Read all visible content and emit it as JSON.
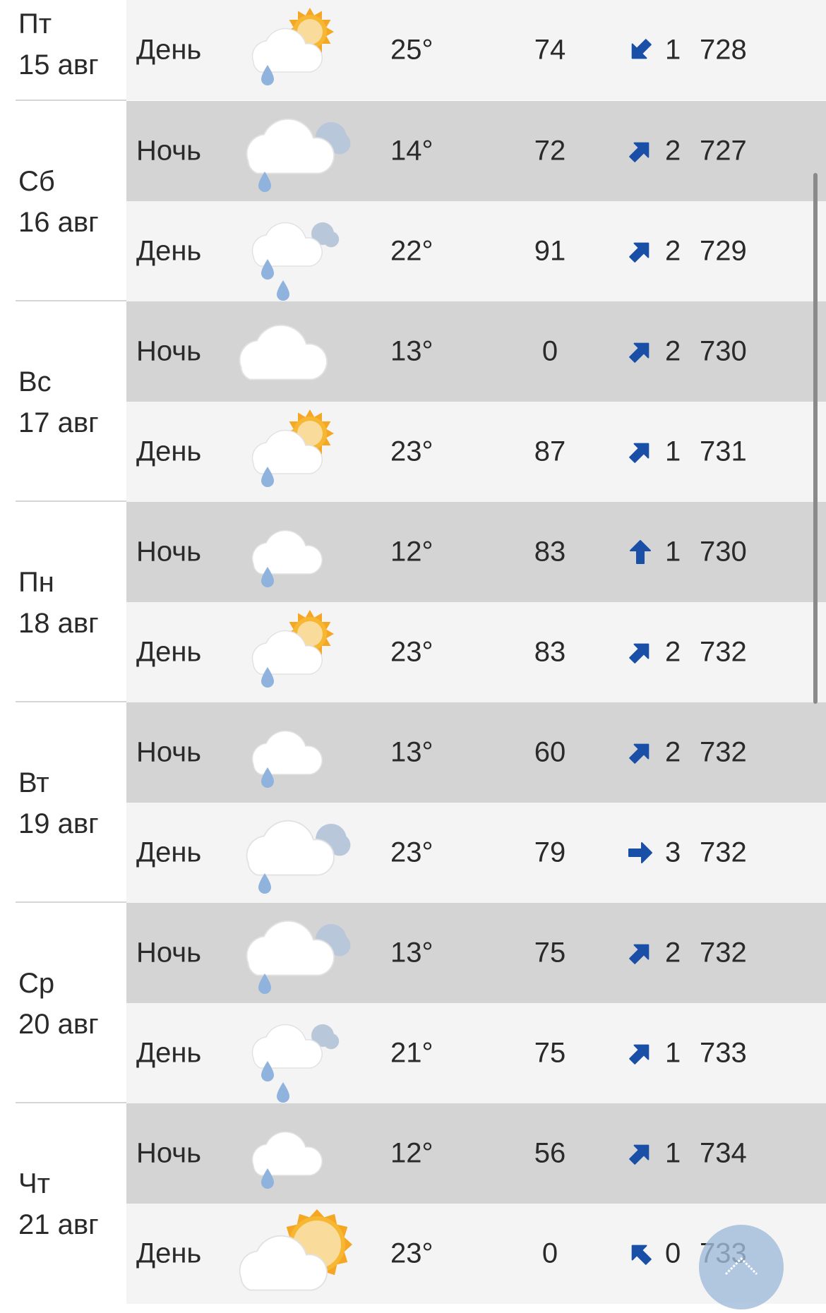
{
  "colors": {
    "wind_arrow": "#1a4fa8",
    "night_row": "#d4d4d4",
    "day_row": "#f4f4f4",
    "scroll_top_button": "#a9bfdc"
  },
  "days": [
    {
      "weekday": "Пт",
      "date": "15 авг",
      "rows": [
        {
          "period": "День",
          "icon": "cloud-sun-rain",
          "temp": "25°",
          "humidity": "74",
          "wind_dir": "down-left",
          "wind_speed": "1",
          "pressure": "728"
        }
      ]
    },
    {
      "weekday": "Сб",
      "date": "16 авг",
      "rows": [
        {
          "period": "Ночь",
          "icon": "overcast-rain",
          "temp": "14°",
          "humidity": "72",
          "wind_dir": "up-right",
          "wind_speed": "2",
          "pressure": "727"
        },
        {
          "period": "День",
          "icon": "overcast-heavy-rain",
          "temp": "22°",
          "humidity": "91",
          "wind_dir": "up-right",
          "wind_speed": "2",
          "pressure": "729"
        }
      ]
    },
    {
      "weekday": "Вс",
      "date": "17 авг",
      "rows": [
        {
          "period": "Ночь",
          "icon": "cloud-moon",
          "temp": "13°",
          "humidity": "0",
          "wind_dir": "up-right",
          "wind_speed": "2",
          "pressure": "730"
        },
        {
          "period": "День",
          "icon": "cloud-sun-rain",
          "temp": "23°",
          "humidity": "87",
          "wind_dir": "up-right",
          "wind_speed": "1",
          "pressure": "731"
        }
      ]
    },
    {
      "weekday": "Пн",
      "date": "18 авг",
      "rows": [
        {
          "period": "Ночь",
          "icon": "cloud-moon-rain",
          "temp": "12°",
          "humidity": "83",
          "wind_dir": "up",
          "wind_speed": "1",
          "pressure": "730"
        },
        {
          "period": "День",
          "icon": "cloud-sun-rain",
          "temp": "23°",
          "humidity": "83",
          "wind_dir": "up-right",
          "wind_speed": "2",
          "pressure": "732"
        }
      ]
    },
    {
      "weekday": "Вт",
      "date": "19 авг",
      "rows": [
        {
          "period": "Ночь",
          "icon": "cloud-moon-rain",
          "temp": "13°",
          "humidity": "60",
          "wind_dir": "up-right",
          "wind_speed": "2",
          "pressure": "732"
        },
        {
          "period": "День",
          "icon": "overcast-rain",
          "temp": "23°",
          "humidity": "79",
          "wind_dir": "right",
          "wind_speed": "3",
          "pressure": "732"
        }
      ]
    },
    {
      "weekday": "Ср",
      "date": "20 авг",
      "rows": [
        {
          "period": "Ночь",
          "icon": "overcast-rain",
          "temp": "13°",
          "humidity": "75",
          "wind_dir": "up-right",
          "wind_speed": "2",
          "pressure": "732"
        },
        {
          "period": "День",
          "icon": "overcast-heavy-rain",
          "temp": "21°",
          "humidity": "75",
          "wind_dir": "up-right",
          "wind_speed": "1",
          "pressure": "733"
        }
      ]
    },
    {
      "weekday": "Чт",
      "date": "21 авг",
      "rows": [
        {
          "period": "Ночь",
          "icon": "cloud-moon-rain",
          "temp": "12°",
          "humidity": "56",
          "wind_dir": "up-right",
          "wind_speed": "1",
          "pressure": "734"
        },
        {
          "period": "День",
          "icon": "sun-cloud",
          "temp": "23°",
          "humidity": "0",
          "wind_dir": "up-left",
          "wind_speed": "0",
          "pressure": "733"
        }
      ]
    }
  ],
  "scroll_top": {
    "icon": "chevron-up-icon"
  }
}
